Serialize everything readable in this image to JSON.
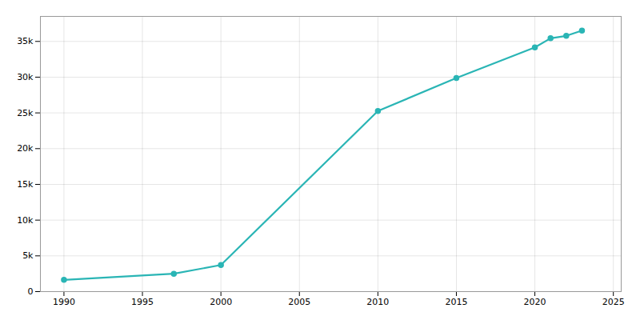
{
  "chart_data": {
    "type": "line",
    "x": [
      1990,
      1997,
      2000,
      2010,
      2015,
      2020,
      2021,
      2022,
      2023
    ],
    "values": [
      1638,
      2500,
      3718,
      25259,
      29888,
      34169,
      35438,
      35780,
      36522
    ],
    "color": "#2ab5b5",
    "marker": "circle",
    "xlim": [
      1988.5,
      2025.5
    ],
    "ylim": [
      0,
      38500
    ],
    "xticks": [
      1990,
      1995,
      2000,
      2005,
      2010,
      2015,
      2020,
      2025
    ],
    "yticks": [
      0,
      {
        "value": 5000,
        "label": "5k"
      },
      {
        "value": 10000,
        "label": "10k"
      },
      {
        "value": 15000,
        "label": "15k"
      },
      {
        "value": 20000,
        "label": "20k"
      },
      {
        "value": 25000,
        "label": "25k"
      },
      {
        "value": 30000,
        "label": "30k"
      },
      {
        "value": 35000,
        "label": "35k"
      }
    ],
    "grid": true
  }
}
